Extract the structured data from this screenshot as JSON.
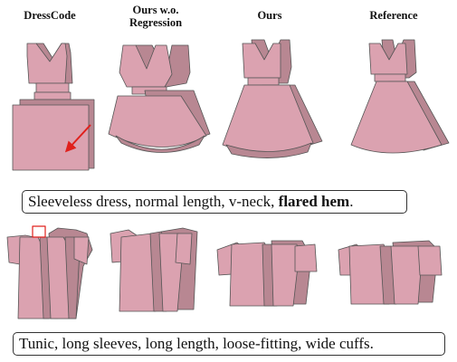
{
  "columns": [
    "DressCode",
    "Ours w.o.\nRegression",
    "Ours",
    "Reference"
  ],
  "caption_top": {
    "text": "Sleeveless dress, normal length, v-neck, ",
    "bold": "flared hem",
    "suffix": "."
  },
  "caption_bottom": {
    "text": "Tunic, long sleeves, long length, loose-fitting, wide cuffs."
  },
  "colors": {
    "fabric": "#dba2b0",
    "fabric_shadow": "#b88792",
    "stroke": "#555555",
    "arrow": "#e0201c",
    "highlight_box": "#e0201c"
  }
}
